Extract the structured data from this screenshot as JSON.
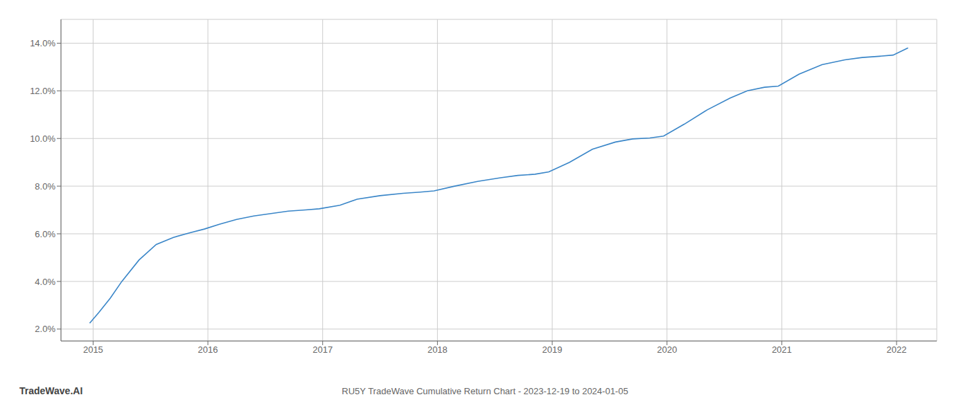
{
  "chart_data": {
    "type": "line",
    "title": "RU5Y TradeWave Cumulative Return Chart - 2023-12-19 to 2024-01-05",
    "annotations": [
      "TradeWave.AI"
    ],
    "x": [
      2014.97,
      2015.05,
      2015.15,
      2015.25,
      2015.4,
      2015.55,
      2015.7,
      2015.85,
      2015.97,
      2016.1,
      2016.25,
      2016.4,
      2016.55,
      2016.7,
      2016.85,
      2016.97,
      2017.15,
      2017.3,
      2017.5,
      2017.7,
      2017.85,
      2017.97,
      2018.15,
      2018.35,
      2018.55,
      2018.7,
      2018.85,
      2018.97,
      2019.15,
      2019.35,
      2019.55,
      2019.7,
      2019.85,
      2019.97,
      2020.15,
      2020.35,
      2020.55,
      2020.7,
      2020.85,
      2020.97,
      2021.15,
      2021.35,
      2021.55,
      2021.7,
      2021.85,
      2021.97,
      2022.1
    ],
    "values": [
      0.0225,
      0.027,
      0.033,
      0.04,
      0.049,
      0.0555,
      0.0585,
      0.0605,
      0.062,
      0.064,
      0.066,
      0.0675,
      0.0685,
      0.0695,
      0.07,
      0.0705,
      0.072,
      0.0745,
      0.076,
      0.077,
      0.0775,
      0.078,
      0.08,
      0.082,
      0.0835,
      0.0845,
      0.085,
      0.086,
      0.09,
      0.0955,
      0.0985,
      0.0998,
      0.1002,
      0.101,
      0.106,
      0.112,
      0.117,
      0.12,
      0.1215,
      0.122,
      0.127,
      0.131,
      0.133,
      0.134,
      0.1345,
      0.135,
      0.138
    ],
    "color": "#3a86c8",
    "xlim": [
      2014.72,
      2022.35
    ],
    "xticks": [
      2015,
      2016,
      2017,
      2018,
      2019,
      2020,
      2021,
      2022
    ],
    "ylim": [
      0.015,
      0.15
    ],
    "yticks": [
      {
        "value": 0.02,
        "label": "2.0%"
      },
      {
        "value": 0.04,
        "label": "4.0%"
      },
      {
        "value": 0.06,
        "label": "6.0%"
      },
      {
        "value": 0.08,
        "label": "8.0%"
      },
      {
        "value": 0.1,
        "label": "10.0%"
      },
      {
        "value": 0.12,
        "label": "12.0%"
      },
      {
        "value": 0.14,
        "label": "14.0%"
      }
    ],
    "grid": true
  }
}
